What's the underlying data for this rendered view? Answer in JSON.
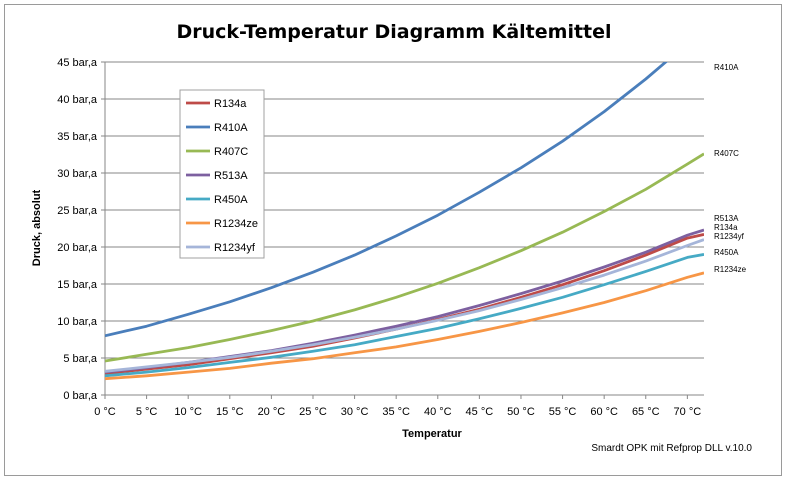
{
  "chart_data": {
    "type": "line",
    "title": "Druck-Temperatur Diagramm Kältemittel",
    "xlabel": "Temperatur",
    "ylabel": "Druck, absolut",
    "xlim": [
      0,
      72
    ],
    "ylim": [
      0,
      45
    ],
    "x_ticks": [
      0,
      5,
      10,
      15,
      20,
      25,
      30,
      35,
      40,
      45,
      50,
      55,
      60,
      65,
      70
    ],
    "x_tick_labels": [
      "0 °C",
      "5 °C",
      "10 °C",
      "15 °C",
      "20 °C",
      "25 °C",
      "30 °C",
      "35 °C",
      "40 °C",
      "45 °C",
      "50 °C",
      "55 °C",
      "60 °C",
      "65 °C",
      "70 °C"
    ],
    "y_ticks": [
      0,
      5,
      10,
      15,
      20,
      25,
      30,
      35,
      40,
      45
    ],
    "y_tick_labels": [
      "0 bar,a",
      "5 bar,a",
      "10 bar,a",
      "15 bar,a",
      "20 bar,a",
      "25 bar,a",
      "30 bar,a",
      "35 bar,a",
      "40 bar,a",
      "45 bar,a"
    ],
    "grid": "horizontal",
    "legend_position": "top-left",
    "x": [
      0,
      5,
      10,
      15,
      20,
      25,
      30,
      35,
      40,
      45,
      50,
      55,
      60,
      65,
      70,
      72
    ],
    "series": [
      {
        "name": "R134a",
        "color": "#be4b48",
        "end_label": "R134a",
        "values": [
          2.9,
          3.5,
          4.1,
          4.9,
          5.7,
          6.6,
          7.7,
          8.9,
          10.2,
          11.6,
          13.2,
          14.9,
          16.8,
          18.9,
          21.2,
          21.7
        ]
      },
      {
        "name": "R410A",
        "color": "#4a7ebb",
        "end_label": "R410A",
        "values": [
          8.0,
          9.3,
          10.9,
          12.6,
          14.5,
          16.6,
          18.9,
          21.5,
          24.3,
          27.4,
          30.7,
          34.3,
          38.3,
          42.7,
          47.5,
          49.6
        ]
      },
      {
        "name": "R407C",
        "color": "#98b954",
        "end_label": "R407C",
        "values": [
          4.6,
          5.5,
          6.4,
          7.5,
          8.7,
          10.0,
          11.5,
          13.2,
          15.1,
          17.2,
          19.5,
          22.0,
          24.8,
          27.8,
          31.2,
          32.6
        ]
      },
      {
        "name": "R513A",
        "color": "#7d60a0",
        "end_label": "R513A",
        "values": [
          3.1,
          3.7,
          4.4,
          5.2,
          6.0,
          7.0,
          8.1,
          9.3,
          10.6,
          12.1,
          13.7,
          15.4,
          17.3,
          19.3,
          21.6,
          22.3
        ]
      },
      {
        "name": "R450A",
        "color": "#46aac5",
        "end_label": "R450A",
        "values": [
          2.6,
          3.1,
          3.7,
          4.4,
          5.1,
          5.9,
          6.8,
          7.9,
          9.0,
          10.3,
          11.7,
          13.2,
          14.9,
          16.7,
          18.6,
          19.0
        ]
      },
      {
        "name": "R1234ze",
        "color": "#f79646",
        "end_label": "R1234ze",
        "values": [
          2.2,
          2.6,
          3.1,
          3.6,
          4.3,
          4.9,
          5.7,
          6.5,
          7.5,
          8.6,
          9.8,
          11.1,
          12.5,
          14.1,
          15.9,
          16.5
        ]
      },
      {
        "name": "R1234yf",
        "color": "#a5b5d9",
        "end_label": "R1234yf",
        "values": [
          3.2,
          3.8,
          4.4,
          5.1,
          5.9,
          6.8,
          7.8,
          8.9,
          10.1,
          11.4,
          12.9,
          14.5,
          16.2,
          18.1,
          20.2,
          21.0
        ]
      }
    ],
    "source_note": "Smardt OPK mit Refprop DLL v.10.0"
  }
}
